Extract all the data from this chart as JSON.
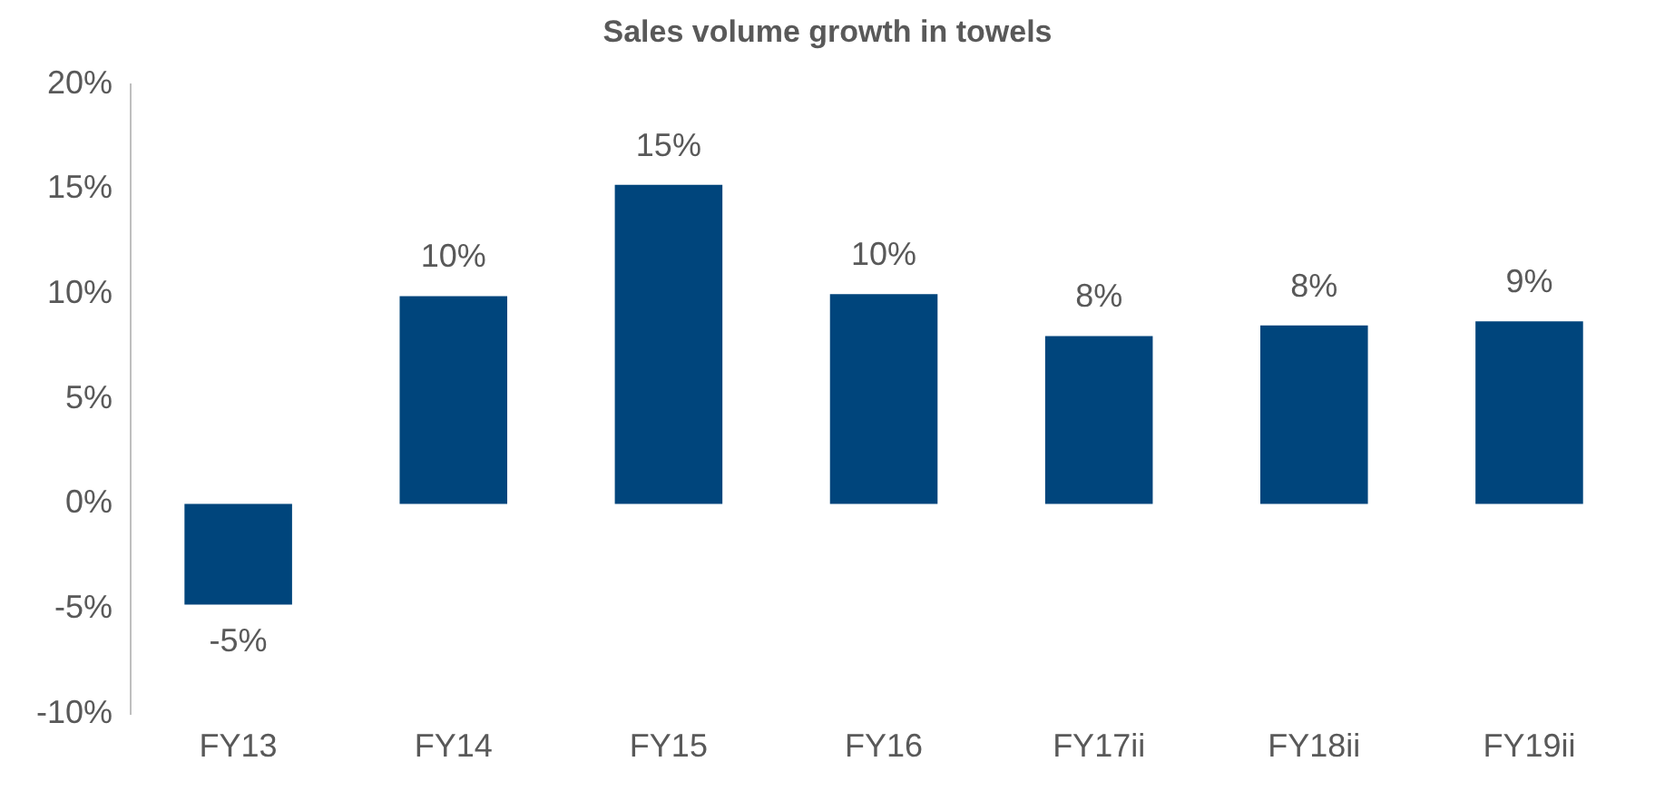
{
  "chart_data": {
    "type": "bar",
    "title": "Sales volume growth in towels",
    "categories": [
      "FY13",
      "FY14",
      "FY15",
      "FY16",
      "FY17ii",
      "FY18ii",
      "FY19ii"
    ],
    "values": [
      -4.8,
      9.9,
      15.2,
      10.0,
      8.0,
      8.5,
      8.7
    ],
    "value_labels": [
      "-5%",
      "10%",
      "15%",
      "10%",
      "8%",
      "8%",
      "9%"
    ],
    "color": "#00457c",
    "ylim": [
      -10,
      20
    ],
    "yticks": [
      {
        "value": -10,
        "label": "-10%"
      },
      {
        "value": -5,
        "label": "-5%"
      },
      {
        "value": 0,
        "label": "0%"
      },
      {
        "value": 5,
        "label": "5%"
      },
      {
        "value": 10,
        "label": "10%"
      },
      {
        "value": 15,
        "label": "15%"
      },
      {
        "value": 20,
        "label": "20%"
      }
    ],
    "grid": false,
    "legend": false
  }
}
